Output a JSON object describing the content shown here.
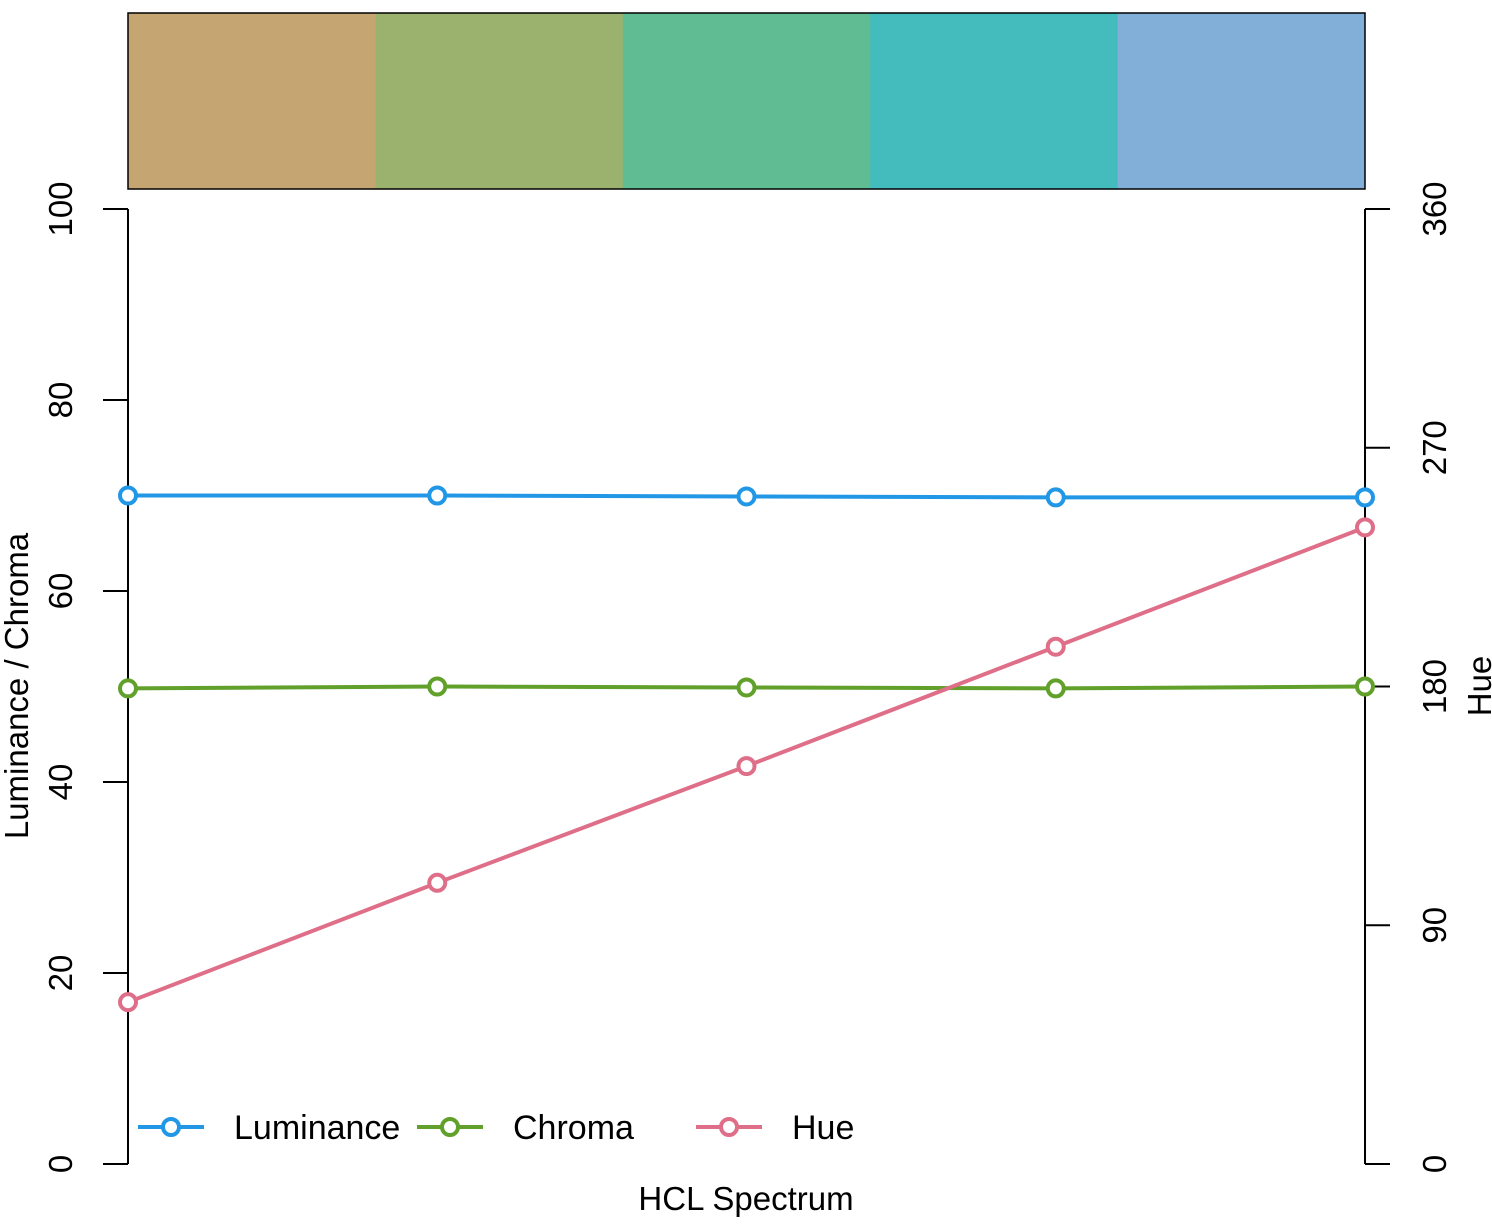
{
  "chart_data": {
    "type": "line",
    "xlabel": "HCL Spectrum",
    "ylabel_left": "Luminance / Chroma",
    "ylabel_right": "Hue",
    "ylim_left": [
      0,
      100
    ],
    "ylim_right": [
      0,
      360
    ],
    "yticks_left": [
      "0",
      "20",
      "40",
      "60",
      "80",
      "100"
    ],
    "yticks_right": [
      "0",
      "90",
      "180",
      "270",
      "360"
    ],
    "x": [
      1,
      2,
      3,
      4,
      5
    ],
    "swatches": [
      "#C5A572",
      "#9BB26F",
      "#5FBC93",
      "#44BCBD",
      "#82AFD8"
    ],
    "series": [
      {
        "name": "Luminance",
        "axis": "left",
        "color": "#2297E6",
        "values": [
          70,
          70,
          69.9,
          69.8,
          69.8
        ]
      },
      {
        "name": "Chroma",
        "axis": "left",
        "color": "#61A02A",
        "values": [
          49.8,
          50,
          49.9,
          49.8,
          50
        ]
      },
      {
        "name": "Hue",
        "axis": "right",
        "color": "#DF6E88",
        "values": [
          61,
          106,
          150,
          195,
          240
        ]
      }
    ],
    "legend_position": "bottom"
  }
}
